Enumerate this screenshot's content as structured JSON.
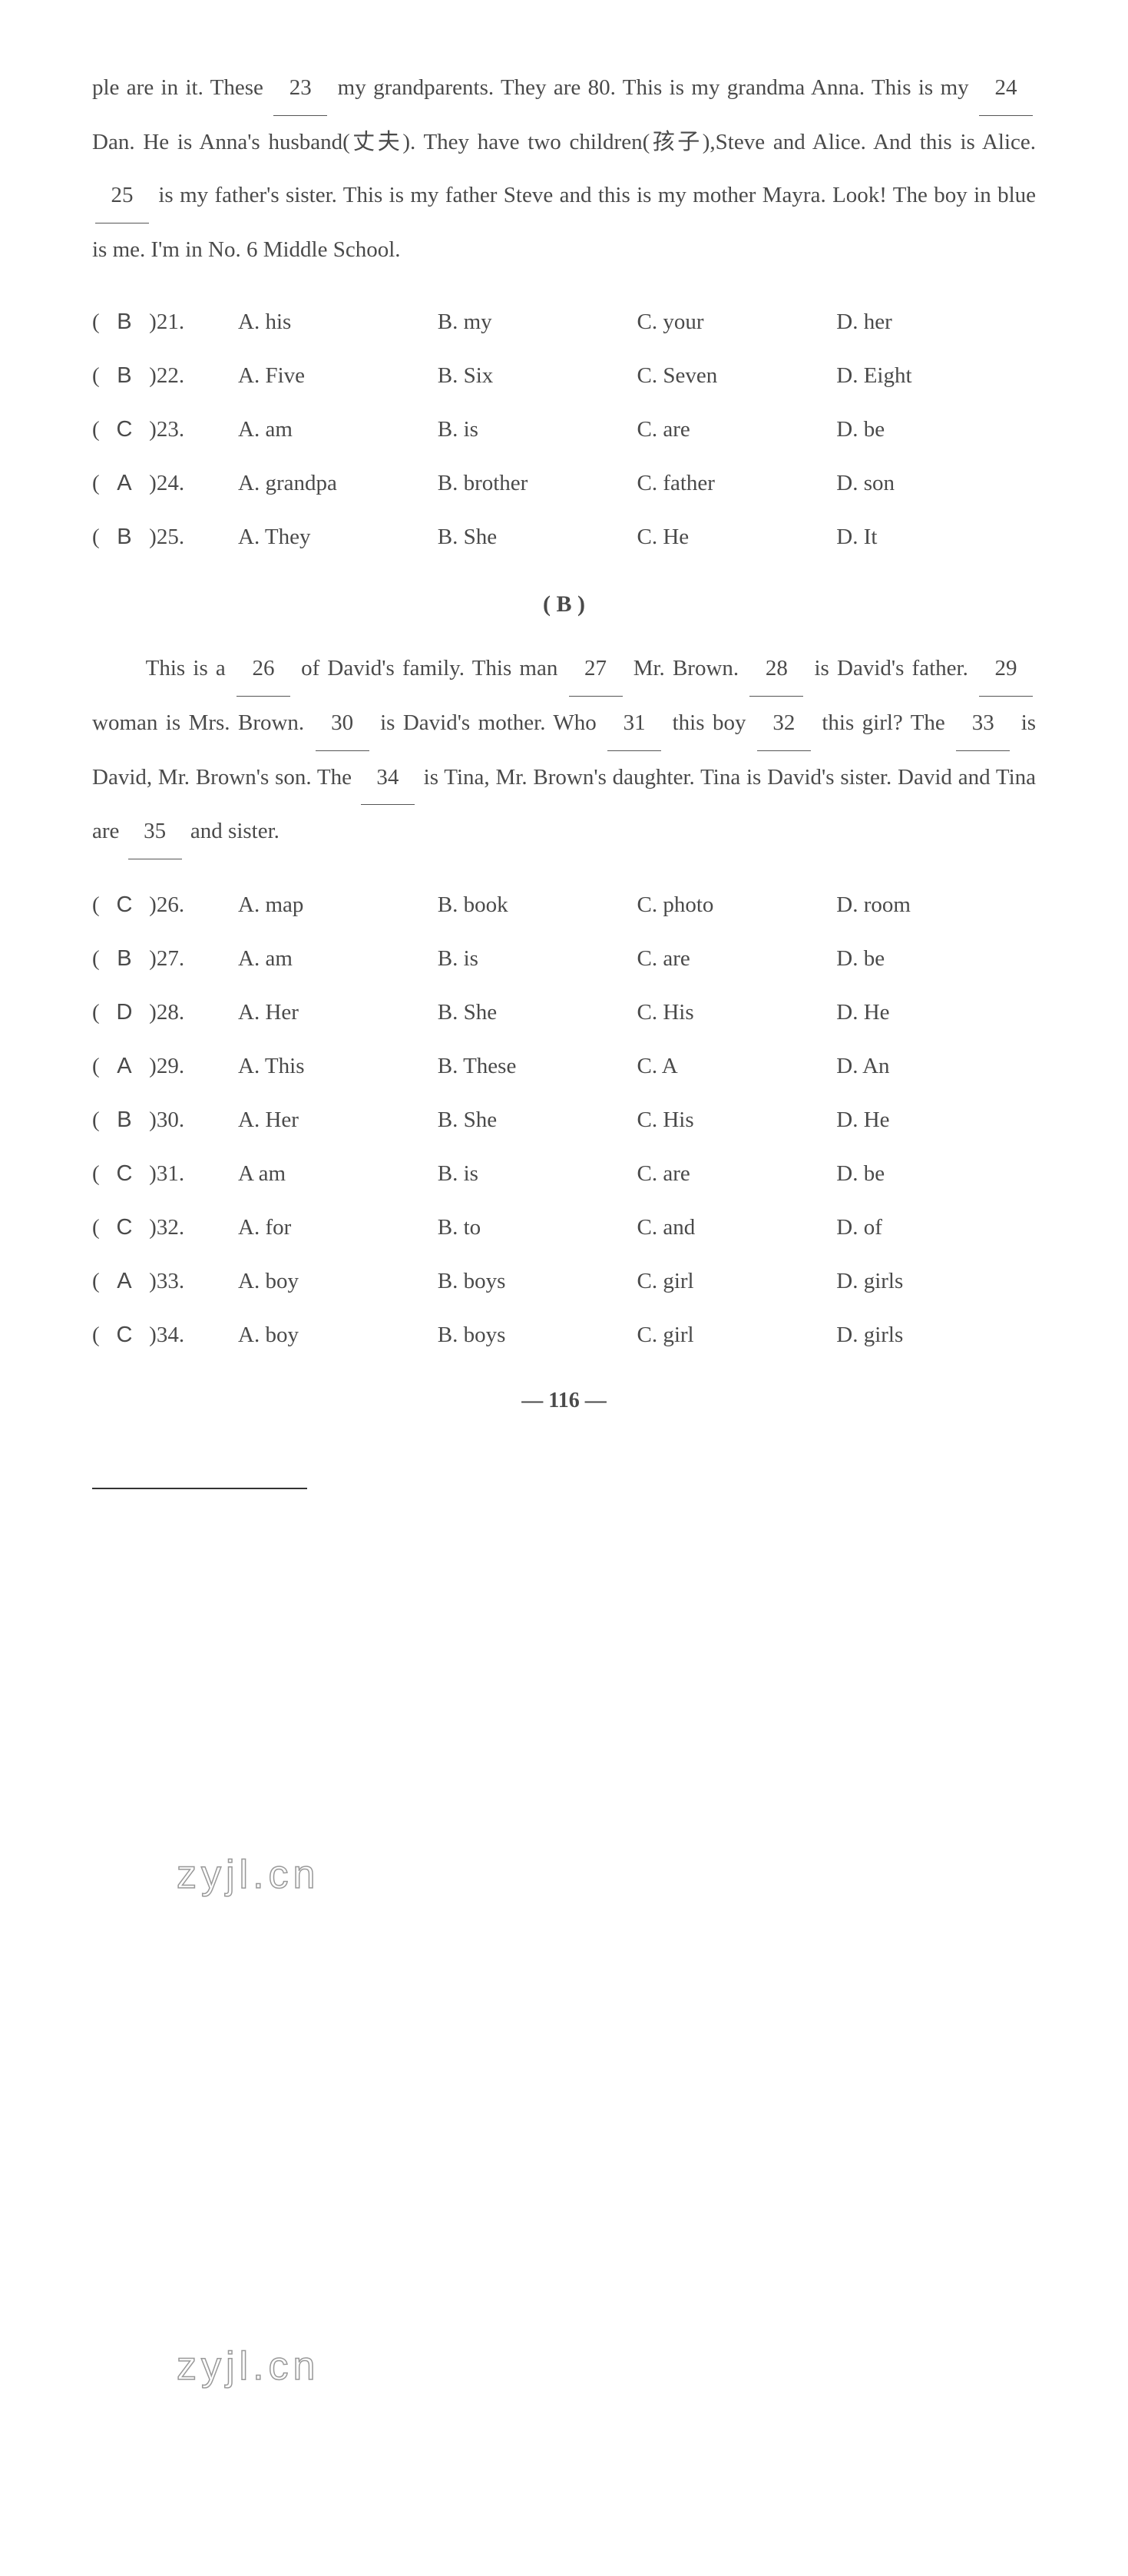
{
  "passage_a": {
    "text_parts": {
      "p1": "ple are in it. These ",
      "b23": "23",
      "p2": " my grandparents. They are 80. This is my grandma Anna. This is my ",
      "b24": "24",
      "p3": " Dan. He is Anna's husband(丈夫). They have two children(孩子),Steve and Alice. And this is Alice. ",
      "b25": "25",
      "p4": " is my father's sister. This is my father Steve and this is my mother Mayra. Look! The boy in blue is me. I'm in No. 6 Middle School."
    }
  },
  "questions_a": [
    {
      "num": "21",
      "answer": "B",
      "optA": "A. his",
      "optB": "B. my",
      "optC": "C. your",
      "optD": "D. her"
    },
    {
      "num": "22",
      "answer": "B",
      "optA": "A. Five",
      "optB": "B. Six",
      "optC": "C. Seven",
      "optD": "D. Eight"
    },
    {
      "num": "23",
      "answer": "C",
      "optA": "A. am",
      "optB": "B. is",
      "optC": "C. are",
      "optD": "D. be"
    },
    {
      "num": "24",
      "answer": "A",
      "optA": "A. grandpa",
      "optB": "B. brother",
      "optC": "C. father",
      "optD": "D. son"
    },
    {
      "num": "25",
      "answer": "B",
      "optA": "A. They",
      "optB": "B. She",
      "optC": "C. He",
      "optD": "D. It"
    }
  ],
  "section_b_header": "( B )",
  "passage_b": {
    "text_parts": {
      "p1": "This is a ",
      "b26": "26",
      "p2": " of David's family. This man ",
      "b27": "27",
      "p3": " Mr. Brown. ",
      "b28": "28",
      "p4": " is David's father. ",
      "b29": "29",
      "p5": " woman is Mrs. Brown. ",
      "b30": "30",
      "p6": " is David's mother. Who ",
      "b31": "31",
      "p7": " this boy ",
      "b32": "32",
      "p8": " this girl? The ",
      "b33": "33",
      "p9": " is David, Mr. Brown's son. The ",
      "b34": "34",
      "p10": " is Tina, Mr. Brown's daughter. Tina is David's sister. David and Tina are ",
      "b35": "35",
      "p11": " and sister."
    }
  },
  "questions_b": [
    {
      "num": "26",
      "answer": "C",
      "optA": "A. map",
      "optB": "B. book",
      "optC": "C. photo",
      "optD": "D. room"
    },
    {
      "num": "27",
      "answer": "B",
      "optA": "A. am",
      "optB": "B. is",
      "optC": "C. are",
      "optD": "D. be"
    },
    {
      "num": "28",
      "answer": "D",
      "optA": "A. Her",
      "optB": "B. She",
      "optC": "C. His",
      "optD": "D. He"
    },
    {
      "num": "29",
      "answer": "A",
      "optA": "A. This",
      "optB": "B. These",
      "optC": "C. A",
      "optD": "D. An"
    },
    {
      "num": "30",
      "answer": "B",
      "optA": "A. Her",
      "optB": "B. She",
      "optC": "C. His",
      "optD": "D. He"
    },
    {
      "num": "31",
      "answer": "C",
      "optA": "A am",
      "optB": "B. is",
      "optC": "C. are",
      "optD": "D. be"
    },
    {
      "num": "32",
      "answer": "C",
      "optA": "A. for",
      "optB": "B. to",
      "optC": "C. and",
      "optD": "D. of"
    },
    {
      "num": "33",
      "answer": "A",
      "optA": "A. boy",
      "optB": "B. boys",
      "optC": "C. girl",
      "optD": "D. girls"
    },
    {
      "num": "34",
      "answer": "C",
      "optA": "A. boy",
      "optB": "B. boys",
      "optC": "C. girl",
      "optD": "D. girls"
    }
  ],
  "page_number": "— 116 —",
  "watermark_text": "zyjl.cn",
  "styling": {
    "body_width": 1469,
    "body_bg": "#ffffff",
    "text_color": "#4a4a4a",
    "font_size_passage": 29,
    "font_size_question": 29,
    "line_height_passage": 2.4,
    "line_height_question": 2.0,
    "blank_border_color": "#555",
    "watermark_stroke": "#999",
    "watermark_fontsize": 52
  }
}
